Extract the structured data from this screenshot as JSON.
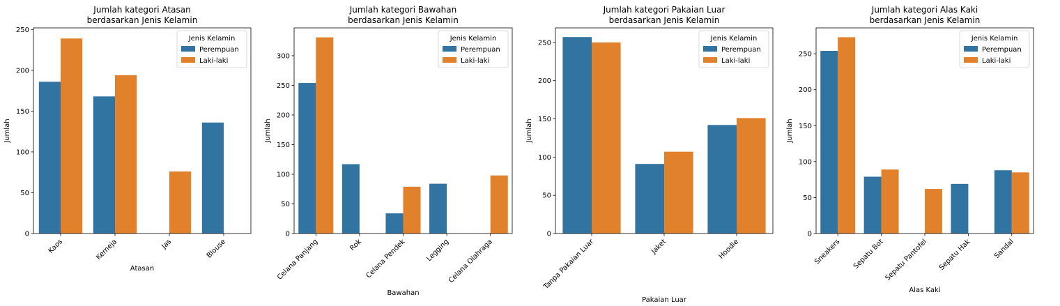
{
  "colors": {
    "Perempuan": "#3274a1",
    "Laki-laki": "#e1812c"
  },
  "chart_data": [
    {
      "type": "bar",
      "title": [
        "Jumlah kategori Atasan",
        "berdasarkan Jenis Kelamin"
      ],
      "xlabel": "Atasan",
      "ylabel": "Jumlah",
      "categories": [
        "Kaos",
        "Kemeja",
        "Jas",
        "Blouse"
      ],
      "ylim": [
        0,
        252
      ],
      "yticks": [
        0,
        50,
        100,
        150,
        200,
        250
      ],
      "series": [
        {
          "name": "Perempuan",
          "values": [
            186,
            168,
            null,
            136
          ]
        },
        {
          "name": "Laki-laki",
          "values": [
            239,
            194,
            76,
            null
          ]
        }
      ],
      "legend": {
        "title": "Jenis Kelamin",
        "position": "top-right"
      }
    },
    {
      "type": "bar",
      "title": [
        "Jumlah kategori Bawahan",
        "berdasarkan Jenis Kelamin"
      ],
      "xlabel": "Bawahan",
      "ylabel": "Jumlah",
      "categories": [
        "Celana Panjang",
        "Rok",
        "Celana Pendek",
        "Legging",
        "Celana Olahraga"
      ],
      "ylim": [
        0,
        347
      ],
      "yticks": [
        0,
        50,
        100,
        150,
        200,
        250,
        300
      ],
      "series": [
        {
          "name": "Perempuan",
          "values": [
            254,
            117,
            34,
            84,
            null
          ]
        },
        {
          "name": "Laki-laki",
          "values": [
            331,
            null,
            79,
            null,
            98
          ]
        }
      ],
      "legend": {
        "title": "Jenis Kelamin",
        "position": "top-right"
      }
    },
    {
      "type": "bar",
      "title": [
        "Jumlah kategori Pakaian Luar",
        "berdasarkan Jenis Kelamin"
      ],
      "xlabel": "Pakaian Luar",
      "ylabel": "Jumlah",
      "categories": [
        "Tanpa Pakaian Luar",
        "Jaket",
        "Hoodie"
      ],
      "ylim": [
        0,
        269
      ],
      "yticks": [
        0,
        50,
        100,
        150,
        200,
        250
      ],
      "series": [
        {
          "name": "Perempuan",
          "values": [
            257,
            91,
            142
          ]
        },
        {
          "name": "Laki-laki",
          "values": [
            250,
            107,
            151
          ]
        }
      ],
      "legend": {
        "title": "Jenis Kelamin",
        "position": "top-right"
      }
    },
    {
      "type": "bar",
      "title": [
        "Jumlah kategori Alas Kaki",
        "berdasarkan Jenis Kelamin"
      ],
      "xlabel": "Alas Kaki",
      "ylabel": "Jumlah",
      "categories": [
        "Sneakers",
        "Sepatu Bot",
        "Sepatu Pantofel",
        "Sepatu Hak",
        "Sandal"
      ],
      "ylim": [
        0,
        286
      ],
      "yticks": [
        0,
        50,
        100,
        150,
        200,
        250
      ],
      "series": [
        {
          "name": "Perempuan",
          "values": [
            254,
            79,
            null,
            69,
            88
          ]
        },
        {
          "name": "Laki-laki",
          "values": [
            273,
            89,
            62,
            null,
            85
          ]
        }
      ],
      "legend": {
        "title": "Jenis Kelamin",
        "position": "top-right"
      }
    }
  ]
}
